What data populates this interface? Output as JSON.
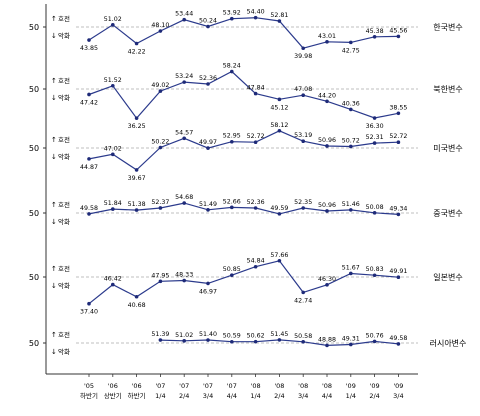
{
  "chart_data": {
    "type": "line",
    "baseline": 50,
    "baseline_label": "50",
    "up_label": "호전",
    "down_label": "악화",
    "up_arrow": "↑",
    "down_arrow": "↓",
    "x_labels": [
      [
        "'05",
        "하반기"
      ],
      [
        "'06",
        "상반기"
      ],
      [
        "'06",
        "하반기"
      ],
      [
        "'07",
        "1/4"
      ],
      [
        "'07",
        "2/4"
      ],
      [
        "'07",
        "3/4"
      ],
      [
        "'07",
        "4/4"
      ],
      [
        "'08",
        "1/4"
      ],
      [
        "'08",
        "2/4"
      ],
      [
        "'08",
        "3/4"
      ],
      [
        "'08",
        "4/4"
      ],
      [
        "'09",
        "1/4"
      ],
      [
        "'09",
        "2/4"
      ],
      [
        "'09",
        "3/4"
      ]
    ],
    "series": [
      {
        "name": "한국변수",
        "values": [
          43.85,
          51.02,
          42.22,
          48.1,
          53.44,
          50.24,
          53.92,
          54.4,
          52.81,
          39.98,
          43.01,
          42.75,
          45.38,
          45.56
        ]
      },
      {
        "name": "북한변수",
        "values": [
          47.42,
          51.52,
          36.25,
          49.02,
          53.24,
          52.36,
          58.24,
          47.84,
          45.12,
          47.08,
          44.2,
          40.36,
          36.3,
          38.55
        ]
      },
      {
        "name": "미국변수",
        "values": [
          44.87,
          47.02,
          39.67,
          50.22,
          54.57,
          49.97,
          52.95,
          52.72,
          58.12,
          53.19,
          50.96,
          50.72,
          52.31,
          52.72
        ]
      },
      {
        "name": "중국변수",
        "values": [
          49.58,
          51.84,
          51.38,
          52.37,
          54.68,
          51.49,
          52.66,
          52.36,
          49.59,
          52.35,
          50.96,
          51.46,
          50.08,
          49.34
        ]
      },
      {
        "name": "일본변수",
        "values": [
          37.4,
          46.42,
          40.68,
          47.95,
          48.33,
          46.97,
          50.85,
          54.84,
          57.66,
          42.74,
          46.3,
          51.67,
          50.83,
          49.91
        ]
      },
      {
        "name": "러시아변수",
        "values": [
          null,
          null,
          null,
          51.39,
          51.02,
          51.4,
          50.59,
          50.62,
          51.45,
          50.58,
          48.88,
          49.31,
          50.76,
          49.58
        ]
      }
    ]
  }
}
